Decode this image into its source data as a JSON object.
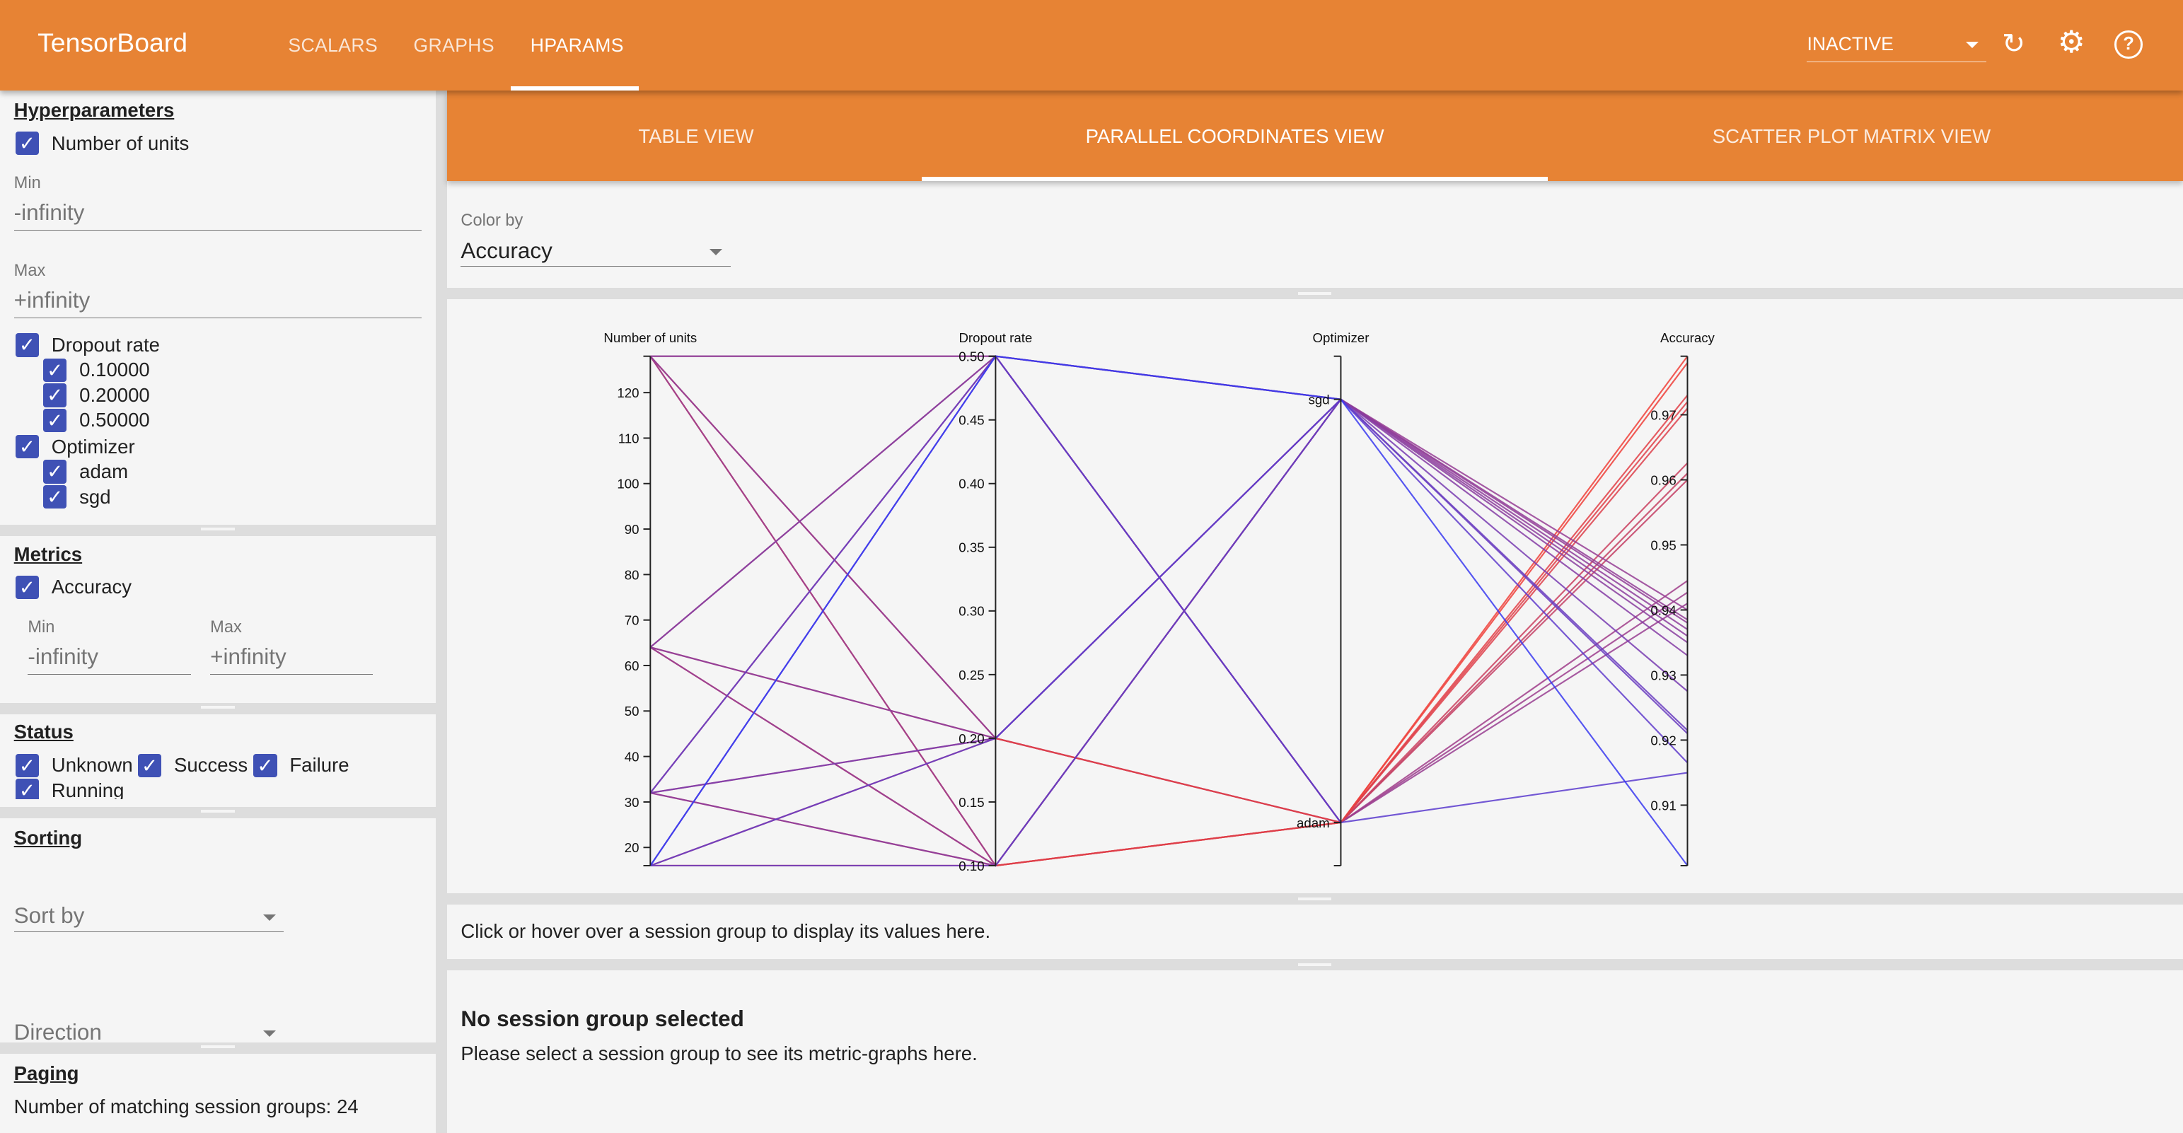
{
  "header": {
    "brand": "TensorBoard",
    "tabs": [
      {
        "label": "SCALARS"
      },
      {
        "label": "GRAPHS"
      },
      {
        "label": "HPARAMS",
        "active": true
      }
    ],
    "run_status": "INACTIVE",
    "icons": [
      "refresh-icon",
      "gear-icon",
      "help-icon"
    ],
    "color": "#E78334"
  },
  "sidebar": {
    "hyperparameters": {
      "title": "Hyperparameters",
      "units": {
        "label": "Number of units",
        "min_label": "Min",
        "min": "-infinity",
        "max_label": "Max",
        "max": "+infinity"
      },
      "dropout": {
        "label": "Dropout rate",
        "values": [
          "0.10000",
          "0.20000",
          "0.50000"
        ]
      },
      "optimizer": {
        "label": "Optimizer",
        "values": [
          "adam",
          "sgd"
        ]
      }
    },
    "metrics": {
      "title": "Metrics",
      "accuracy": {
        "label": "Accuracy",
        "min_label": "Min",
        "min": "-infinity",
        "max_label": "Max",
        "max": "+infinity"
      }
    },
    "status": {
      "title": "Status",
      "items": [
        "Unknown",
        "Success",
        "Failure",
        "Running"
      ]
    },
    "sorting": {
      "title": "Sorting",
      "sort_by": "Sort by",
      "direction": "Direction"
    },
    "paging": {
      "title": "Paging",
      "matching": "Number of matching session groups: 24"
    },
    "checkbox_color": "#3F51B5"
  },
  "main": {
    "tabs": [
      {
        "label": "TABLE VIEW"
      },
      {
        "label": "PARALLEL COORDINATES VIEW",
        "active": true
      },
      {
        "label": "SCATTER PLOT MATRIX VIEW"
      }
    ],
    "color_by_label": "Color by",
    "color_by": "Accuracy",
    "hover_hint": "Click or hover over a session group to display its values here.",
    "no_selection_title": "No session group selected",
    "no_selection_text": "Please select a session group to see its metric-graphs here."
  },
  "chart_data": {
    "type": "parallel-coordinates",
    "axes": [
      {
        "name": "Number of units",
        "range": [
          16,
          128
        ],
        "ticks": [
          20,
          30,
          40,
          50,
          60,
          70,
          80,
          90,
          100,
          110,
          120
        ]
      },
      {
        "name": "Dropout rate",
        "range": [
          0.1,
          0.5
        ],
        "ticks": [
          "0.10",
          "0.15",
          "0.20",
          "0.25",
          "0.30",
          "0.35",
          "0.40",
          "0.45",
          "0.50"
        ]
      },
      {
        "name": "Optimizer",
        "categories": [
          "sgd",
          "adam"
        ]
      },
      {
        "name": "Accuracy",
        "range": [
          0.9007,
          0.979
        ],
        "ticks": [
          "0.91",
          "0.92",
          "0.93",
          "0.94",
          "0.95",
          "0.96",
          "0.97"
        ]
      }
    ],
    "color_scale": {
      "low": "#3a3af0",
      "high": "#f04038"
    },
    "sessions": [
      [
        128,
        0.1,
        "adam",
        0.979
      ],
      [
        128,
        0.2,
        "adam",
        0.9626
      ],
      [
        128,
        0.5,
        "adam",
        0.941
      ],
      [
        64,
        0.1,
        "adam",
        0.978
      ],
      [
        64,
        0.2,
        "adam",
        0.961
      ],
      [
        64,
        0.5,
        "adam",
        0.9427
      ],
      [
        32,
        0.1,
        "adam",
        0.973
      ],
      [
        32,
        0.2,
        "adam",
        0.96
      ],
      [
        32,
        0.5,
        "adam",
        0.9445
      ],
      [
        16,
        0.1,
        "adam",
        0.971
      ],
      [
        16,
        0.2,
        "adam",
        0.972
      ],
      [
        16,
        0.5,
        "adam",
        0.915
      ],
      [
        128,
        0.1,
        "sgd",
        0.94
      ],
      [
        128,
        0.2,
        "sgd",
        0.9385
      ],
      [
        128,
        0.5,
        "sgd",
        0.938
      ],
      [
        64,
        0.1,
        "sgd",
        0.937
      ],
      [
        64,
        0.2,
        "sgd",
        0.936
      ],
      [
        64,
        0.5,
        "sgd",
        0.935
      ],
      [
        32,
        0.1,
        "sgd",
        0.933
      ],
      [
        32,
        0.2,
        "sgd",
        0.9275
      ],
      [
        32,
        0.5,
        "sgd",
        0.9215
      ],
      [
        16,
        0.1,
        "sgd",
        0.921
      ],
      [
        16,
        0.2,
        "sgd",
        0.9165
      ],
      [
        16,
        0.5,
        "sgd",
        0.9007
      ]
    ]
  }
}
